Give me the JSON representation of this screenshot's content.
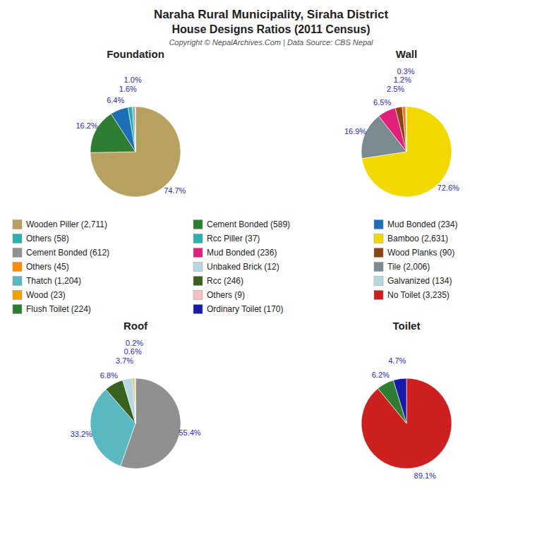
{
  "title": "Naraha Rural Municipality, Siraha District",
  "subtitle": "House Designs Ratios (2011 Census)",
  "annotations": [
    {
      "text": "Copyright © NepalArchives.Com | Data Source: CBS Nepal"
    },
    {
      "text": "Wooden Piller (2,711)",
      "color": "#b8a060"
    },
    {
      "text": "Others (58)",
      "color": "#2ab0b0"
    },
    {
      "text": "Cement Bonded (612)",
      "color": "#909090"
    },
    {
      "text": "Others (45)",
      "color": "#ff8c00"
    },
    {
      "text": "Thatch (1,204)",
      "color": "#5ab8c0"
    },
    {
      "text": "Wood (23)",
      "color": "#f0a000"
    },
    {
      "text": "Flush Toilet (224)",
      "color": "#2e7d32"
    },
    {
      "text": "Cement Bonded (589)",
      "color": "#2e7d32"
    },
    {
      "text": "Rcc Piller (37)",
      "color": "#2ab0b0"
    },
    {
      "text": "Mud Bonded (236)",
      "color": "#e0207a"
    },
    {
      "text": "Unbaked Brick (12)",
      "color": "#b8d8e0"
    },
    {
      "text": "Rcc (246)",
      "color": "#3a6020"
    },
    {
      "text": "Others (9)",
      "color": "#f4c0c0"
    },
    {
      "text": "Ordinary Toilet (170)",
      "color": "#1a1aaa"
    },
    {
      "text": "Mud Bonded (234)",
      "color": "#1c6eb5"
    },
    {
      "text": "Bamboo (2,631)",
      "color": "#f0d800"
    },
    {
      "text": "Wood Planks (90)",
      "color": "#8b4513"
    },
    {
      "text": "Tile (2,006)",
      "color": "#7a8a90"
    },
    {
      "text": "Galvanized (134)",
      "color": "#b8d8e0"
    },
    {
      "text": "No Toilet (3,235)",
      "color": "#cc2020"
    }
  ],
  "chart_data": [
    {
      "type": "pie",
      "title": "Foundation",
      "values": [
        74.7,
        16.2,
        6.4,
        1.6,
        1.0,
        0.1
      ],
      "value_labels": [
        "74.7%",
        "16.2%",
        "6.4%",
        "1.6%",
        "1.0%",
        null
      ],
      "colors": [
        "#b8a060",
        "#2e7d32",
        "#1c6eb5",
        "#2ab0b0",
        "#a0a0c0",
        "#c0c0c0"
      ],
      "data_labels": true
    },
    {
      "type": "pie",
      "title": "Wall",
      "values": [
        72.6,
        16.9,
        6.5,
        2.5,
        1.2,
        0.3
      ],
      "value_labels": [
        "72.6%",
        "16.9%",
        "6.5%",
        "2.5%",
        "1.2%",
        "0.3%"
      ],
      "colors": [
        "#f0d800",
        "#7a8a90",
        "#e0207a",
        "#8b4513",
        "#e87820",
        "#c8c8c0"
      ],
      "data_labels": true
    },
    {
      "type": "pie",
      "title": "Roof",
      "values": [
        55.4,
        33.2,
        6.8,
        3.7,
        0.6,
        0.2,
        0.1
      ],
      "value_labels": [
        "55.4%",
        "33.2%",
        "6.8%",
        "3.7%",
        "0.6%",
        "0.2%",
        null
      ],
      "colors": [
        "#909090",
        "#5ab8c0",
        "#3a6020",
        "#b8d8e0",
        "#f0a000",
        "#b0b0b0",
        "#c0c0c0"
      ],
      "data_labels": true
    },
    {
      "type": "pie",
      "title": "Toilet",
      "values": [
        89.1,
        6.2,
        4.7
      ],
      "value_labels": [
        "89.1%",
        "6.2%",
        "4.7%"
      ],
      "colors": [
        "#cc2020",
        "#2e7d32",
        "#1a1aaa"
      ],
      "data_labels": true
    }
  ]
}
